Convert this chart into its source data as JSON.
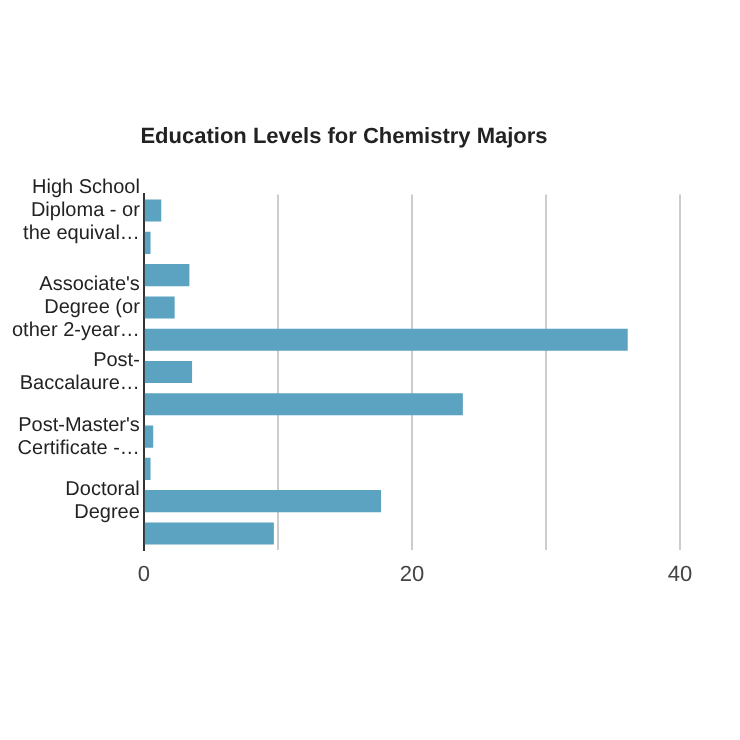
{
  "chart_data": {
    "type": "bar",
    "orientation": "horizontal",
    "title": "Education Levels for Chemistry Majors",
    "categories": [
      "High School Diploma - or the equival…",
      null,
      null,
      "Associate's Degree (or other 2-year…",
      null,
      "Post-Baccalaure…",
      null,
      "Post-Master's Certificate -…",
      null,
      "Doctoral Degree",
      null
    ],
    "values": [
      1.3,
      0.5,
      3.4,
      2.3,
      36.1,
      3.6,
      23.8,
      0.7,
      0.5,
      17.7,
      9.7
    ],
    "color": "#5ba3c0",
    "xlim": [
      0,
      40
    ],
    "xticks": [
      0,
      {
        "value": 10,
        "label": null
      },
      20,
      {
        "value": 30,
        "label": null
      },
      40
    ],
    "grid": "x"
  }
}
